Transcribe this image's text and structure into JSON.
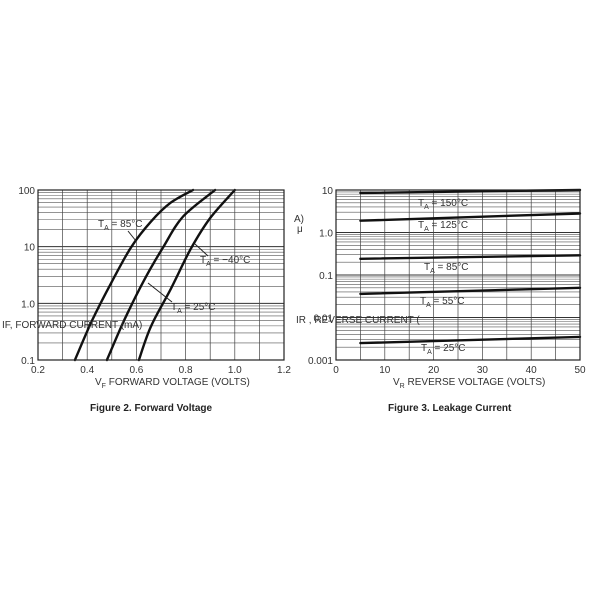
{
  "chart_data": [
    {
      "type": "line",
      "title": "",
      "caption": "Figure 2. Forward Voltage",
      "xlabel": "V",
      "xlabel_sub": "F",
      "xlabel_rest": " FORWARD VOLTAGE (VOLTS)",
      "ylabel": "IF, FORWARD CURRENT (mA)",
      "xlim": [
        0.2,
        1.2
      ],
      "ylim": [
        0.1,
        100
      ],
      "yscale": "log",
      "grid": true,
      "x_ticks": [
        "0.2",
        "0.4",
        "0.6",
        "0.8",
        "1.0",
        "1.2"
      ],
      "y_ticks": [
        "0.1",
        "1.0",
        "10",
        "100"
      ],
      "series": [
        {
          "name": "85°C",
          "points": [
            [
              0.35,
              0.1
            ],
            [
              0.42,
              0.5
            ],
            [
              0.5,
              2.4
            ],
            [
              0.58,
              10
            ],
            [
              0.66,
              28
            ],
            [
              0.74,
              60
            ],
            [
              0.83,
              100
            ]
          ]
        },
        {
          "name": "25°C",
          "points": [
            [
              0.48,
              0.1
            ],
            [
              0.55,
              0.5
            ],
            [
              0.63,
              2.5
            ],
            [
              0.71,
              10
            ],
            [
              0.79,
              34
            ],
            [
              0.92,
              100
            ]
          ]
        },
        {
          "name": "−40°C",
          "points": [
            [
              0.61,
              0.1
            ],
            [
              0.66,
              0.4
            ],
            [
              0.74,
              1.8
            ],
            [
              0.82,
              9
            ],
            [
              0.9,
              32
            ],
            [
              1.0,
              100
            ]
          ]
        }
      ],
      "annotations": [
        {
          "label": "T",
          "sub": "A",
          "rest": " = 85°C"
        },
        {
          "label": "T",
          "sub": "A",
          "rest": " = −40°C"
        },
        {
          "label": "T",
          "sub": "A",
          "rest": " = 25°C"
        }
      ]
    },
    {
      "type": "line",
      "title": "",
      "caption": "Figure 3. Leakage Current",
      "xlabel": "V",
      "xlabel_sub": "R",
      "xlabel_rest": " REVERSE VOLTAGE (VOLTS)",
      "ylabel": "IR , REVERSE CURRENT (",
      "ylabel_fragments": [
        "μ",
        "A)"
      ],
      "xlim": [
        0,
        50
      ],
      "ylim": [
        0.001,
        10
      ],
      "yscale": "log",
      "grid": true,
      "x_ticks": [
        "0",
        "10",
        "20",
        "30",
        "40",
        "50"
      ],
      "y_ticks": [
        "0.001",
        "0.01",
        "0.1",
        "1.0",
        "10"
      ],
      "series": [
        {
          "name": "150°C",
          "points": [
            [
              5,
              8.5
            ],
            [
              50,
              10
            ]
          ]
        },
        {
          "name": "125°C",
          "points": [
            [
              5,
              1.9
            ],
            [
              50,
              2.8
            ]
          ]
        },
        {
          "name": "85°C",
          "points": [
            [
              5,
              0.24
            ],
            [
              50,
              0.29
            ]
          ]
        },
        {
          "name": "55°C",
          "points": [
            [
              5,
              0.036
            ],
            [
              50,
              0.05
            ]
          ]
        },
        {
          "name": "25°C",
          "points": [
            [
              5,
              0.0025
            ],
            [
              50,
              0.0035
            ]
          ]
        }
      ],
      "annotations": [
        {
          "label": "T",
          "sub": "A",
          "rest": " = 150°C"
        },
        {
          "label": "T",
          "sub": "A",
          "rest": " = 125°C"
        },
        {
          "label": "T",
          "sub": "A",
          "rest": " = 85°C"
        },
        {
          "label": "T",
          "sub": "A",
          "rest": " = 55°C"
        },
        {
          "label": "T",
          "sub": "A",
          "rest": " = 25°C"
        }
      ]
    }
  ]
}
